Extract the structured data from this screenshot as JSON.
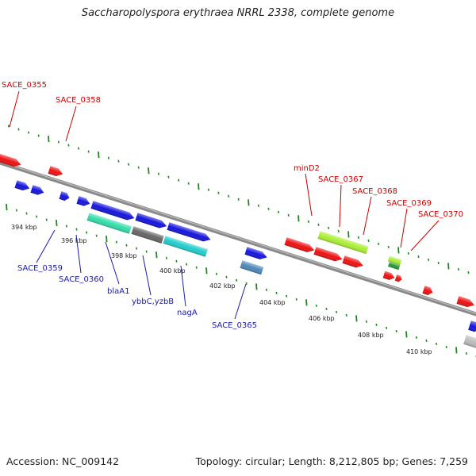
{
  "header": {
    "title": "Saccharopolyspora erythraea NRRL 2338, complete genome"
  },
  "footer": {
    "accession": "Accession: NC_009142",
    "summary": "Topology: circular; Length: 8,212,805 bp; Genes: 7,259"
  },
  "colors": {
    "forward_gene": "#ee1111",
    "reverse_gene": "#1515dd",
    "backbone": "#888888",
    "tick": "#228822",
    "label_red": "#cc0000",
    "label_blue": "#1a1aa8"
  },
  "scale": {
    "unit": "kbp",
    "tick_labels": [
      "394 kbp",
      "396 kbp",
      "398 kbp",
      "400 kbp",
      "402 kbp",
      "404 kbp",
      "406 kbp",
      "408 kbp",
      "410 kbp"
    ]
  },
  "gene_labels": {
    "forward": [
      "SACE_0355",
      "SACE_0358",
      "minD2",
      "SACE_0367",
      "SACE_0368",
      "SACE_0369",
      "SACE_0370"
    ],
    "reverse": [
      "SACE_0359",
      "SACE_0360",
      "blaA1",
      "ybbC,yzbB",
      "nagA",
      "SACE_0365"
    ]
  }
}
